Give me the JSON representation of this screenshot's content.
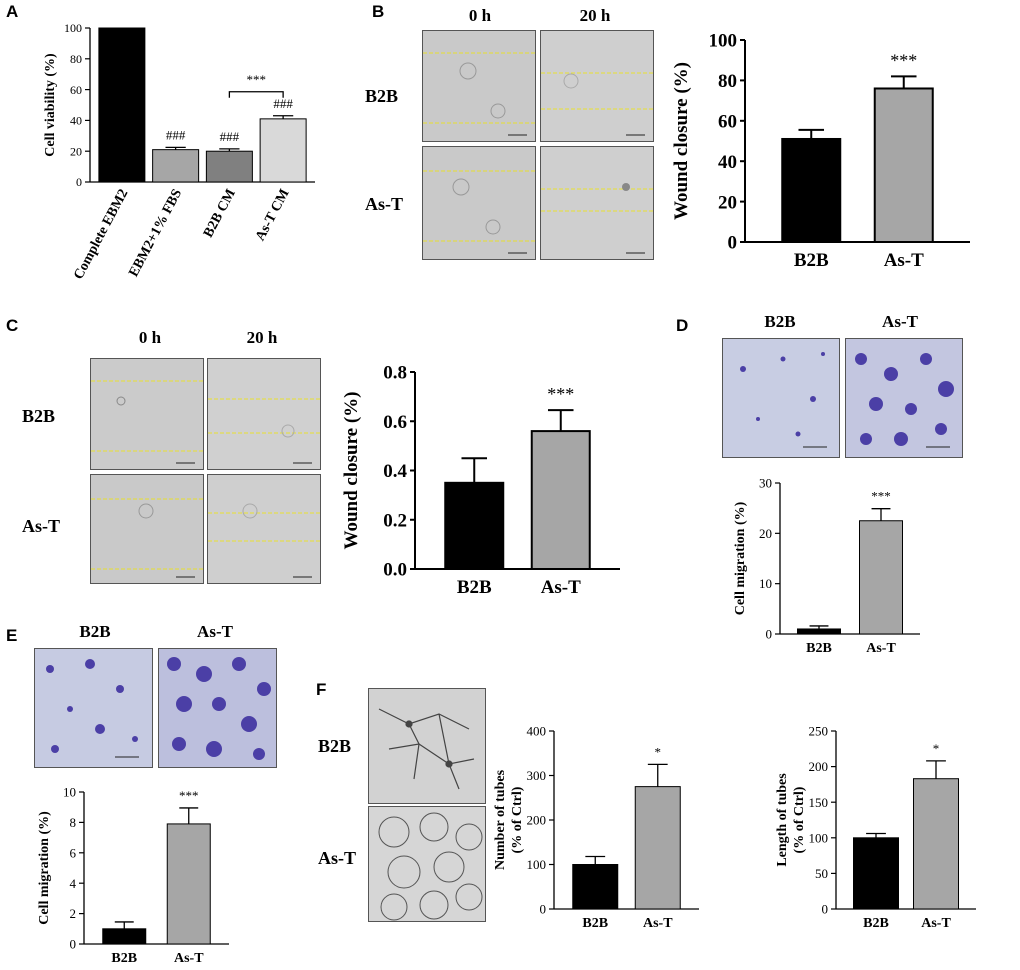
{
  "panels": {
    "A": {
      "letter": "A"
    },
    "B": {
      "letter": "B",
      "time_labels": [
        "0 h",
        "20 h"
      ],
      "row_labels": [
        "B2B",
        "As-T"
      ]
    },
    "C": {
      "letter": "C",
      "time_labels": [
        "0 h",
        "20 h"
      ],
      "row_labels": [
        "B2B",
        "As-T"
      ]
    },
    "D": {
      "letter": "D",
      "col_labels": [
        "B2B",
        "As-T"
      ]
    },
    "E": {
      "letter": "E",
      "col_labels": [
        "B2B",
        "As-T"
      ]
    },
    "F": {
      "letter": "F",
      "row_labels": [
        "B2B",
        "As-T"
      ]
    }
  },
  "colors": {
    "black_bar": "#000000",
    "grey_bar": "#a6a6a6",
    "mid_grey_bar": "#808080",
    "light_grey_bar": "#d9d9d9",
    "wound_line": "#e8e030",
    "crystal_violet": "#4b3fa6"
  },
  "chart_data": [
    {
      "id": "A",
      "type": "bar",
      "categories": [
        "Complete EBM2",
        "EBM2+1% FBS",
        "B2B CM",
        "As-T CM"
      ],
      "values": [
        100,
        21,
        20,
        41
      ],
      "errors": [
        0,
        1.5,
        1.5,
        2
      ],
      "colors": [
        "#000000",
        "#a6a6a6",
        "#808080",
        "#d9d9d9"
      ],
      "annotations": [
        "",
        "###",
        "###",
        "###"
      ],
      "bracket": {
        "from": 2,
        "to": 3,
        "label": "***"
      },
      "ylabel": "Cell viability (%)",
      "ylim": [
        0,
        100
      ],
      "yticks": [
        0,
        20,
        40,
        60,
        80,
        100
      ],
      "rotated_labels": true
    },
    {
      "id": "B",
      "type": "bar",
      "categories": [
        "B2B",
        "As-T"
      ],
      "values": [
        51,
        76
      ],
      "errors": [
        4.5,
        6
      ],
      "colors": [
        "#000000",
        "#a6a6a6"
      ],
      "annotations": [
        "",
        "***"
      ],
      "ylabel": "Wound closure (%)",
      "ylim": [
        0,
        100
      ],
      "yticks": [
        0,
        20,
        40,
        60,
        80,
        100
      ]
    },
    {
      "id": "C",
      "type": "bar",
      "categories": [
        "B2B",
        "As-T"
      ],
      "values": [
        0.35,
        0.56
      ],
      "errors": [
        0.1,
        0.085
      ],
      "colors": [
        "#000000",
        "#a6a6a6"
      ],
      "annotations": [
        "",
        "***"
      ],
      "ylabel": "Wound closure (%)",
      "ylim": [
        0,
        0.8
      ],
      "yticks": [
        0.0,
        0.2,
        0.4,
        0.6,
        0.8
      ],
      "decimals": 1
    },
    {
      "id": "D",
      "type": "bar",
      "categories": [
        "B2B",
        "As-T"
      ],
      "values": [
        1,
        22.5
      ],
      "errors": [
        0.6,
        2.4
      ],
      "colors": [
        "#000000",
        "#a6a6a6"
      ],
      "annotations": [
        "",
        "***"
      ],
      "ylabel": "Cell migration (%)",
      "ylim": [
        0,
        30
      ],
      "yticks": [
        0,
        10,
        20,
        30
      ]
    },
    {
      "id": "E",
      "type": "bar",
      "categories": [
        "B2B",
        "As-T"
      ],
      "values": [
        1,
        7.9
      ],
      "errors": [
        0.45,
        1.05
      ],
      "colors": [
        "#000000",
        "#a6a6a6"
      ],
      "annotations": [
        "",
        "***"
      ],
      "ylabel": "Cell migration (%)",
      "ylim": [
        0,
        10
      ],
      "yticks": [
        0,
        2,
        4,
        6,
        8,
        10
      ]
    },
    {
      "id": "F1",
      "type": "bar",
      "categories": [
        "B2B",
        "As-T"
      ],
      "values": [
        100,
        275
      ],
      "errors": [
        18,
        50
      ],
      "colors": [
        "#000000",
        "#a6a6a6"
      ],
      "annotations": [
        "",
        "*"
      ],
      "ylabel": "Number of tubes",
      "ylabel2": "(% of Ctrl)",
      "ylim": [
        0,
        400
      ],
      "yticks": [
        0,
        100,
        200,
        300,
        400
      ]
    },
    {
      "id": "F2",
      "type": "bar",
      "categories": [
        "B2B",
        "As-T"
      ],
      "values": [
        100,
        183
      ],
      "errors": [
        6,
        25
      ],
      "colors": [
        "#000000",
        "#a6a6a6"
      ],
      "annotations": [
        "",
        "*"
      ],
      "ylabel": "Length of tubes",
      "ylabel2": "(% of Ctrl)",
      "ylim": [
        0,
        250
      ],
      "yticks": [
        0,
        50,
        100,
        150,
        200,
        250
      ]
    }
  ]
}
